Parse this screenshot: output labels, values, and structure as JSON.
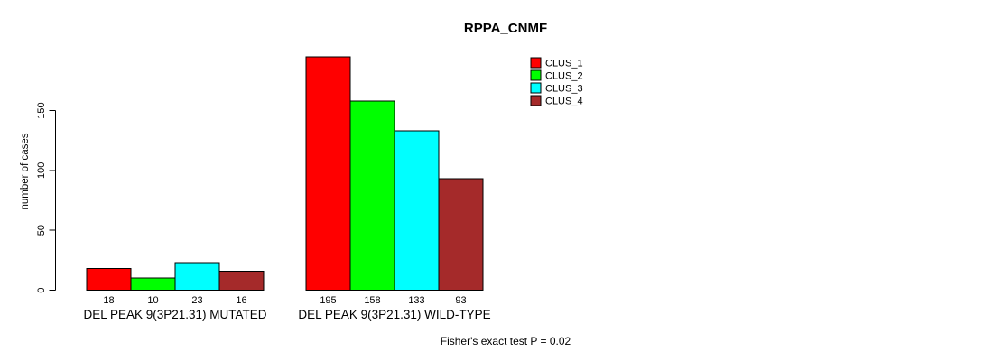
{
  "chart_data": {
    "type": "bar",
    "title": "RPPA_CNMF",
    "ylabel": "number of cases",
    "xlabel": "",
    "categories": [
      "DEL PEAK 9(3P21.31) MUTATED",
      "DEL PEAK 9(3P21.31) WILD-TYPE"
    ],
    "series": [
      {
        "name": "CLUS_1",
        "color": "#FF0000",
        "values": [
          18,
          195
        ]
      },
      {
        "name": "CLUS_2",
        "color": "#00FF00",
        "values": [
          10,
          158
        ]
      },
      {
        "name": "CLUS_3",
        "color": "#00FFFF",
        "values": [
          23,
          133
        ]
      },
      {
        "name": "CLUS_4",
        "color": "#A52A2A",
        "values": [
          16,
          93
        ]
      }
    ],
    "yticks": [
      0,
      50,
      100,
      150
    ],
    "ylim": [
      0,
      200
    ],
    "grid": false,
    "legend_position": "top-right",
    "bar_value_labels": true,
    "annotation": "Fisher's exact test P = 0.02"
  }
}
